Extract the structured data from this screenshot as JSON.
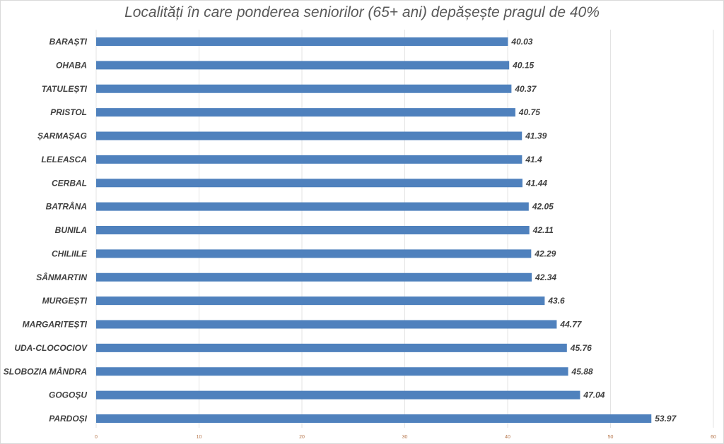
{
  "chart_data": {
    "type": "bar",
    "orientation": "horizontal",
    "title": "Localități în care ponderea seniorilor (65+ ani) depășește pragul de 40%",
    "categories": [
      "BARAȘTI",
      "OHABA",
      "TATULEȘTI",
      "PRISTOL",
      "ȘARMAȘAG",
      "LELEASCA",
      "CERBAL",
      "BATRÂNA",
      "BUNILA",
      "CHILIILE",
      "SÂNMARTIN",
      "MURGEȘTI",
      "MARGARITEȘTI",
      "UDA-CLOCOCIOV",
      "SLOBOZIA MÂNDRA",
      "GOGOȘU",
      "PARDOȘI"
    ],
    "values": [
      40.03,
      40.15,
      40.37,
      40.75,
      41.39,
      41.4,
      41.44,
      42.05,
      42.11,
      42.29,
      42.34,
      43.6,
      44.77,
      45.76,
      45.88,
      47.04,
      53.97
    ],
    "value_labels": [
      "40.03",
      "40.15",
      "40.37",
      "40.75",
      "41.39",
      "41.4",
      "41.44",
      "42.05",
      "42.11",
      "42.29",
      "42.34",
      "43.6",
      "44.77",
      "45.76",
      "45.88",
      "47.04",
      "53.97"
    ],
    "xlim": [
      0,
      60
    ],
    "xticks": [
      "0",
      "10",
      "20",
      "30",
      "40",
      "50",
      "60"
    ],
    "grid": true,
    "bar_color": "#4f81bd"
  }
}
